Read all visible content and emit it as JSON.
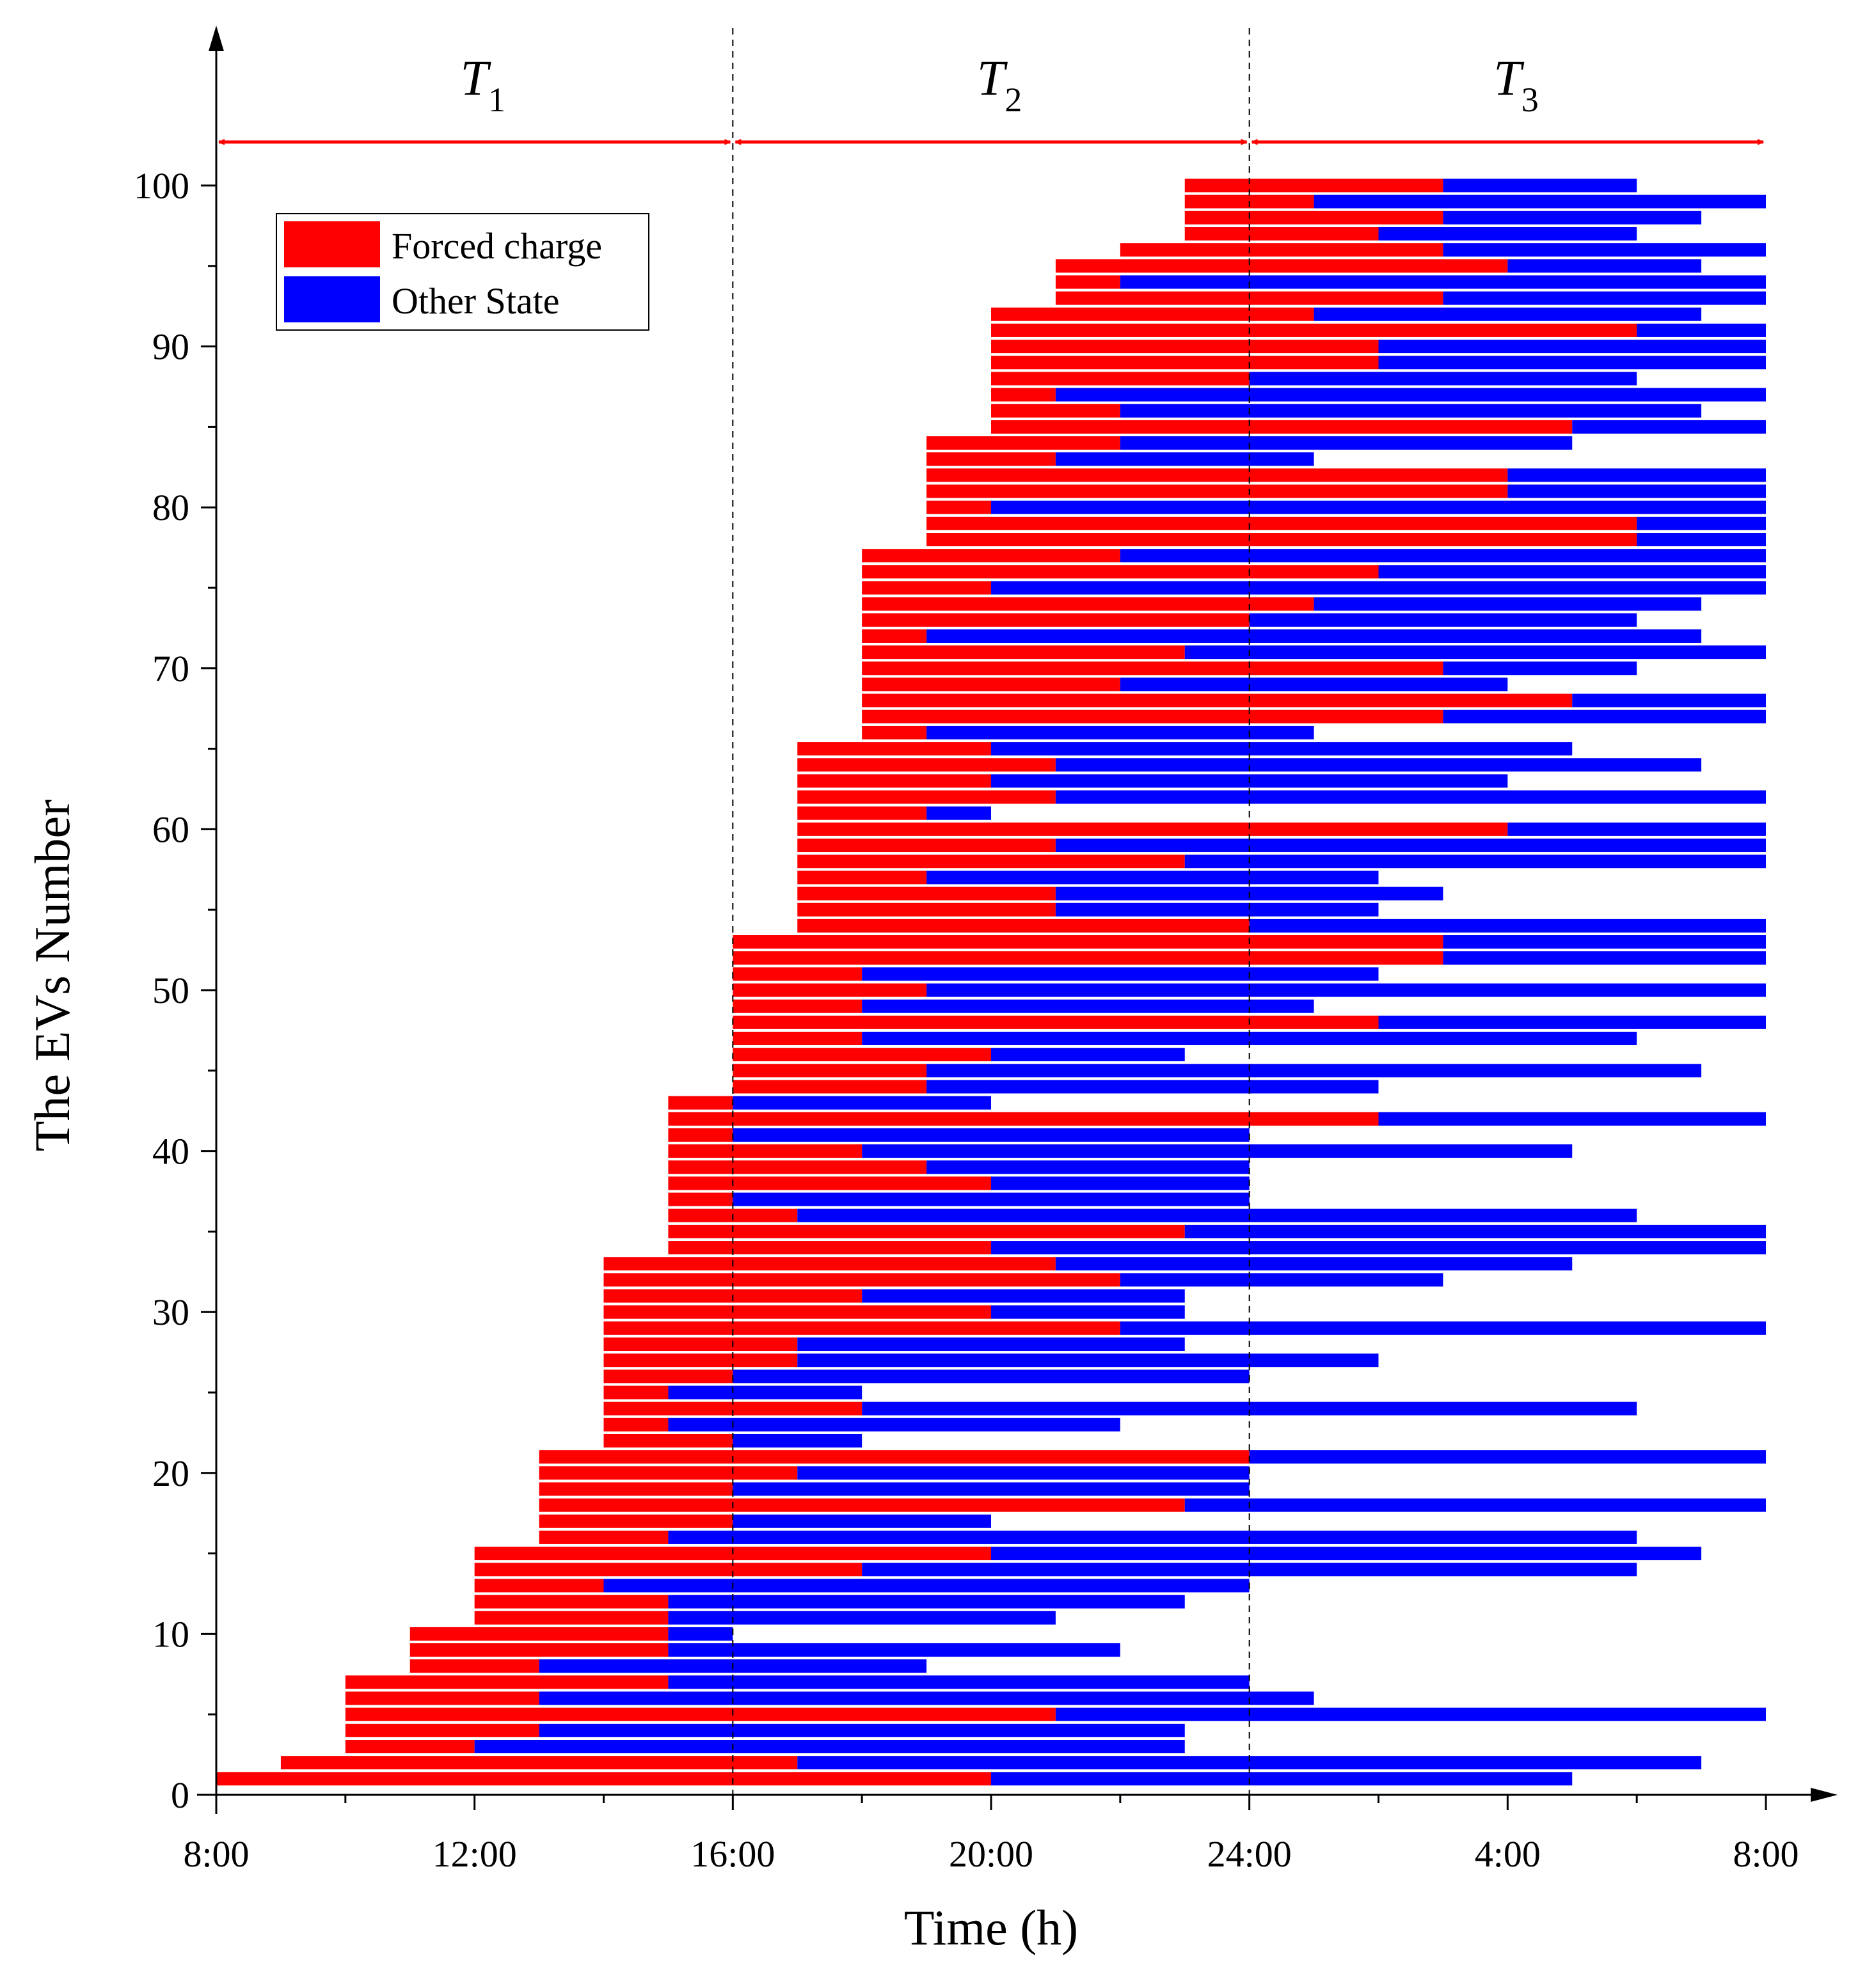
{
  "chart_data": {
    "type": "bar",
    "orientation": "horizontal-stacked",
    "xlabel": "Time (h)",
    "ylabel": "The EVs Number",
    "x_ticks": [
      "8:00",
      "12:00",
      "16:00",
      "20:00",
      "24:00",
      "4:00",
      "8:00"
    ],
    "y_ticks": [
      "0",
      "10",
      "20",
      "30",
      "40",
      "50",
      "60",
      "70",
      "80",
      "90",
      "100"
    ],
    "xlim_hours": [
      8,
      32
    ],
    "ylim": [
      0,
      100
    ],
    "periods": [
      {
        "letter": "T",
        "sub": "1",
        "start": 8,
        "end": 16
      },
      {
        "letter": "T",
        "sub": "2",
        "start": 16,
        "end": 24
      },
      {
        "letter": "T",
        "sub": "3",
        "start": 24,
        "end": 32
      }
    ],
    "legend": {
      "position": "top-left",
      "entries": [
        {
          "name": "Forced charge",
          "color": "#ff0000"
        },
        {
          "name": "Other State",
          "color": "#0000ff"
        }
      ]
    },
    "colors": {
      "forced": "#ff0000",
      "other": "#0000ff",
      "period_arrow": "#ff0000"
    },
    "units_note": "each EV: [arrival_hour, forced_charge_end_hour, departure_hour]; hours past 24 are next day",
    "evs": [
      [
        8,
        20,
        29
      ],
      [
        9,
        17,
        31
      ],
      [
        10,
        12,
        23
      ],
      [
        10,
        13,
        23
      ],
      [
        10,
        21,
        32
      ],
      [
        10,
        13,
        25
      ],
      [
        10,
        15,
        24
      ],
      [
        11,
        13,
        19
      ],
      [
        11,
        15,
        22
      ],
      [
        11,
        15,
        16
      ],
      [
        12,
        15,
        21
      ],
      [
        12,
        15,
        23
      ],
      [
        12,
        14,
        24
      ],
      [
        12,
        18,
        30
      ],
      [
        12,
        20,
        31
      ],
      [
        13,
        15,
        30
      ],
      [
        13,
        16,
        20
      ],
      [
        13,
        23,
        32
      ],
      [
        13,
        16,
        24
      ],
      [
        13,
        17,
        24
      ],
      [
        13,
        24,
        32
      ],
      [
        14,
        16,
        18
      ],
      [
        14,
        15,
        22
      ],
      [
        14,
        18,
        30
      ],
      [
        14,
        15,
        18
      ],
      [
        14,
        16,
        24
      ],
      [
        14,
        17,
        26
      ],
      [
        14,
        17,
        23
      ],
      [
        14,
        22,
        32
      ],
      [
        14,
        20,
        23
      ],
      [
        14,
        18,
        23
      ],
      [
        14,
        22,
        27
      ],
      [
        14,
        21,
        29
      ],
      [
        15,
        20,
        32
      ],
      [
        15,
        23,
        32
      ],
      [
        15,
        17,
        30
      ],
      [
        15,
        16,
        24
      ],
      [
        15,
        20,
        24
      ],
      [
        15,
        19,
        24
      ],
      [
        15,
        18,
        29
      ],
      [
        15,
        16,
        24
      ],
      [
        15,
        26,
        32
      ],
      [
        15,
        16,
        20
      ],
      [
        16,
        19,
        26
      ],
      [
        16,
        19,
        31
      ],
      [
        16,
        20,
        23
      ],
      [
        16,
        18,
        30
      ],
      [
        16,
        26,
        32
      ],
      [
        16,
        18,
        25
      ],
      [
        16,
        19,
        32
      ],
      [
        16,
        18,
        26
      ],
      [
        16,
        27,
        32
      ],
      [
        16,
        27,
        32
      ],
      [
        17,
        24,
        32
      ],
      [
        17,
        21,
        26
      ],
      [
        17,
        21,
        27
      ],
      [
        17,
        19,
        26
      ],
      [
        17,
        23,
        32
      ],
      [
        17,
        21,
        32
      ],
      [
        17,
        28,
        32
      ],
      [
        17,
        19,
        20
      ],
      [
        17,
        21,
        32
      ],
      [
        17,
        20,
        28
      ],
      [
        17,
        21,
        31
      ],
      [
        17,
        20,
        29
      ],
      [
        18,
        19,
        25
      ],
      [
        18,
        27,
        32
      ],
      [
        18,
        29,
        32
      ],
      [
        18,
        22,
        28
      ],
      [
        18,
        27,
        30
      ],
      [
        18,
        23,
        32
      ],
      [
        18,
        19,
        31
      ],
      [
        18,
        24,
        30
      ],
      [
        18,
        25,
        31
      ],
      [
        18,
        20,
        32
      ],
      [
        18,
        26,
        32
      ],
      [
        18,
        22,
        32
      ],
      [
        19,
        30,
        32
      ],
      [
        19,
        30,
        32
      ],
      [
        19,
        20,
        32
      ],
      [
        19,
        28,
        32
      ],
      [
        19,
        28,
        32
      ],
      [
        19,
        21,
        25
      ],
      [
        19,
        22,
        29
      ],
      [
        20,
        29,
        32
      ],
      [
        20,
        22,
        31
      ],
      [
        20,
        21,
        32
      ],
      [
        20,
        24,
        30
      ],
      [
        20,
        26,
        32
      ],
      [
        20,
        26,
        32
      ],
      [
        20,
        30,
        32
      ],
      [
        20,
        25,
        31
      ],
      [
        21,
        27,
        32
      ],
      [
        21,
        22,
        32
      ],
      [
        21,
        28,
        31
      ],
      [
        22,
        27,
        32
      ],
      [
        23,
        26,
        30
      ],
      [
        23,
        27,
        31
      ],
      [
        23,
        25,
        32
      ],
      [
        23,
        27,
        30
      ]
    ]
  }
}
